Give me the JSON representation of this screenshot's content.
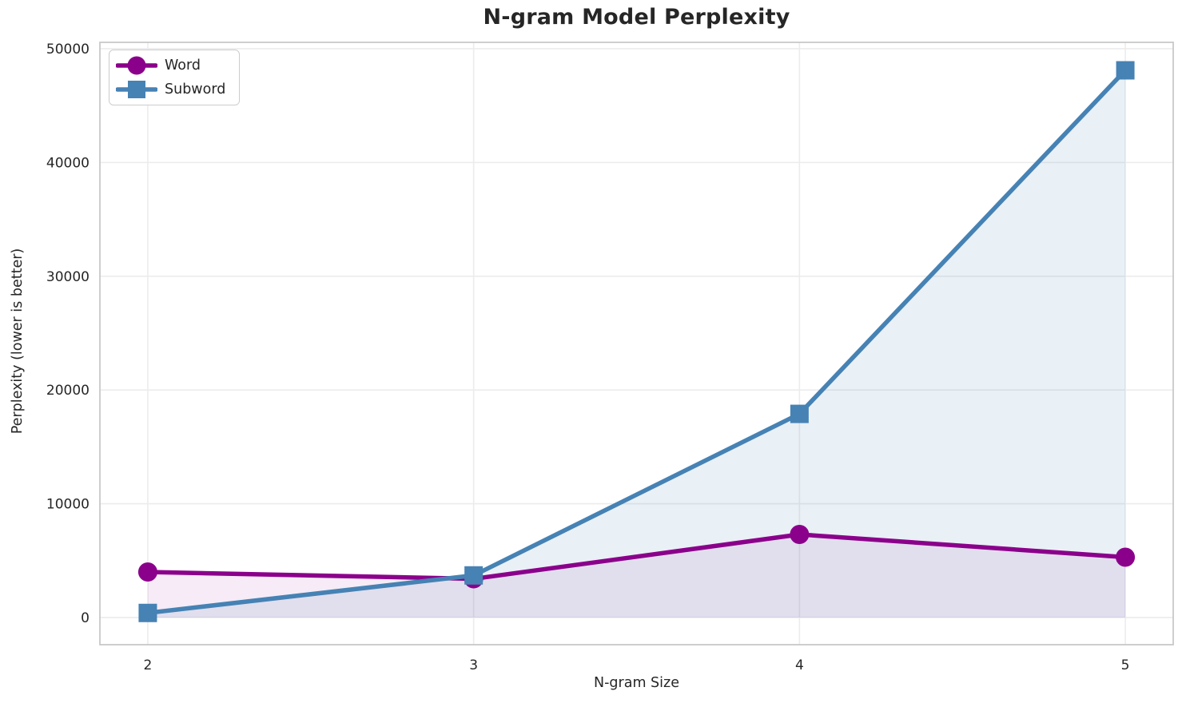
{
  "chart_data": {
    "type": "line",
    "title": "N-gram Model Perplexity",
    "xlabel": "N-gram Size",
    "ylabel": "Perplexity (lower is better)",
    "x": [
      2,
      3,
      4,
      5
    ],
    "x_tick_labels": [
      "2",
      "3",
      "4",
      "5"
    ],
    "y_ticks": [
      0,
      10000,
      20000,
      30000,
      40000,
      50000
    ],
    "y_tick_labels": [
      "0",
      "10000",
      "20000",
      "30000",
      "40000",
      "50000"
    ],
    "xlim": [
      1.853,
      5.147
    ],
    "ylim": [
      -2390,
      50560
    ],
    "grid": true,
    "legend": {
      "position": "upper-left",
      "entries": [
        "Word",
        "Subword"
      ]
    },
    "series": [
      {
        "name": "Word",
        "marker": "circle",
        "color": "#8B008B",
        "fill_alpha": 0.08,
        "values": [
          4000,
          3400,
          7300,
          5300
        ]
      },
      {
        "name": "Subword",
        "marker": "square",
        "color": "#4682B4",
        "fill_alpha": 0.12,
        "values": [
          400,
          3700,
          17900,
          48100
        ]
      }
    ],
    "style": {
      "grid_color": "#ececec",
      "spine_color": "#c9c9c9",
      "text_color": "#262626",
      "background": "#ffffff"
    }
  }
}
